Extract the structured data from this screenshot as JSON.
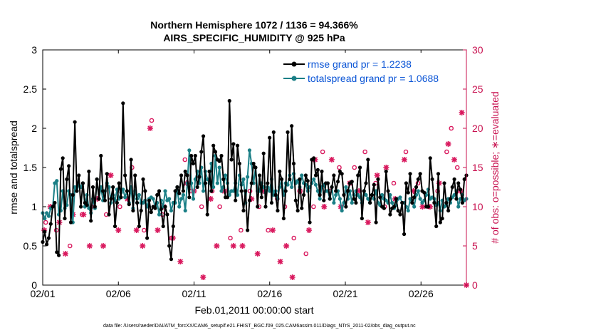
{
  "chart_data": {
    "type": "line",
    "title_line1": "Northern Hemisphere 1072 / 1136 = 94.366%",
    "title_line2": "AIRS_SPECIFIC_HUMIDITY @ 925 hPa",
    "xlabel": "Feb.01,2011 00:00:00 start",
    "ylabel_left": "rmse and totalspread",
    "ylabel_right": "# of obs: o=possible; ∗=evaluated",
    "x_ticks": [
      {
        "day": 0,
        "label": "02/01"
      },
      {
        "day": 5,
        "label": "02/06"
      },
      {
        "day": 10,
        "label": "02/11"
      },
      {
        "day": 15,
        "label": "02/16"
      },
      {
        "day": 20,
        "label": "02/21"
      },
      {
        "day": 25,
        "label": "02/26"
      }
    ],
    "xlim": [
      0,
      28
    ],
    "ylim_left": [
      0,
      3
    ],
    "yticks_left": [
      "0",
      "0.5",
      "1",
      "1.5",
      "2",
      "2.5",
      "3"
    ],
    "ylim_right": [
      0,
      30
    ],
    "yticks_right": [
      "0",
      "5",
      "10",
      "15",
      "20",
      "25",
      "30"
    ],
    "colors": {
      "rmse": "#000000",
      "spread": "#1a7f86",
      "obs": "#d9195e",
      "legend_text": "#0b55d6",
      "right_axis": "#c8104f"
    },
    "series": [
      {
        "name": "rmse",
        "legend": "rmse grand pr = 1.2238",
        "values": [
          0.55,
          0.68,
          0.52,
          0.6,
          0.78,
          1.0,
          1.05,
          0.42,
          0.38,
          1.48,
          1.62,
          0.85,
          1.35,
          1.52,
          0.8,
          1.15,
          2.08,
          1.2,
          1.4,
          1.0,
          1.3,
          1.05,
          1.02,
          1.45,
          0.82,
          1.25,
          1.0,
          1.35,
          1.1,
          1.65,
          1.2,
          1.08,
          1.42,
          0.9,
          1.1,
          1.25,
          0.75,
          1.05,
          1.3,
          1.12,
          2.32,
          1.4,
          1.2,
          1.03,
          1.6,
          0.95,
          1.4,
          1.05,
          0.75,
          0.95,
          1.35,
          1.2,
          0.6,
          1.08,
          0.93,
          1.0,
          0.98,
          1.15,
          1.2,
          0.97,
          0.75,
          1.0,
          0.9,
          0.5,
          0.33,
          0.75,
          1.2,
          1.25,
          1.17,
          1.4,
          1.2,
          1.45,
          1.4,
          1.12,
          1.65,
          1.55,
          1.65,
          1.25,
          1.38,
          1.7,
          1.9,
          1.3,
          0.9,
          1.45,
          1.2,
          1.78,
          1.7,
          1.6,
          1.58,
          1.65,
          1.35,
          1.12,
          1.12,
          2.35,
          1.6,
          1.8,
          1.08,
          1.78,
          1.55,
          1.2,
          0.95,
          1.2,
          0.7,
          1.08,
          1.3,
          1.55,
          1.5,
          1.0,
          1.4,
          1.12,
          1.68,
          1.0,
          1.3,
          1.88,
          1.05,
          1.95,
          1.15,
          0.95,
          1.45,
          1.35,
          0.85,
          1.2,
          1.95,
          1.35,
          2.03,
          1.55,
          1.08,
          0.95,
          1.35,
          0.98,
          1.15,
          1.4,
          1.33,
          0.8,
          1.6,
          1.62,
          1.4,
          1.47,
          1.15,
          1.45,
          1.08,
          1.3,
          1.3,
          1.1,
          1.25,
          1.4,
          1.2,
          1.32,
          1.45,
          1.42,
          1.15,
          1.0,
          1.2,
          1.3,
          1.32,
          1.1,
          1.05,
          1.4,
          1.5,
          0.85,
          1.2,
          1.3,
          1.6,
          1.05,
          1.15,
          1.28,
          0.8,
          1.35,
          1.12,
          1.0,
          0.98,
          1.45,
          1.2,
          0.9,
          0.98,
          1.0,
          1.1,
          0.95,
          0.9,
          1.05,
          0.65,
          1.3,
          1.18,
          1.42,
          1.05,
          1.12,
          1.25,
          1.35,
          1.42,
          1.2,
          1.18,
          1.0,
          1.0,
          1.62,
          1.35,
          1.05,
          0.75,
          1.42,
          0.8,
          0.85,
          1.3,
          1.05,
          0.95,
          1.1,
          1.25,
          1.35,
          1.1,
          1.3,
          1.22,
          1.05,
          1.35,
          1.4
        ]
      },
      {
        "name": "totalspread",
        "legend": "totalspread grand pr = 1.0688",
        "values": [
          0.92,
          0.85,
          0.92,
          0.88,
          0.98,
          1.0,
          1.3,
          1.33,
          0.9,
          0.95,
          1.2,
          0.98,
          1.02,
          1.2,
          1.15,
          0.8,
          1.25,
          1.2,
          1.28,
          1.25,
          1.3,
          1.0,
          1.15,
          0.98,
          0.92,
          1.1,
          0.98,
          1.35,
          1.1,
          1.25,
          1.08,
          1.2,
          1.3,
          1.25,
          1.05,
          1.15,
          1.08,
          1.22,
          1.1,
          1.18,
          1.22,
          1.12,
          1.2,
          1.05,
          1.25,
          0.98,
          1.2,
          1.1,
          1.15,
          1.05,
          1.05,
          1.08,
          1.0,
          1.1,
          1.12,
          1.1,
          1.0,
          1.05,
          0.9,
          1.08,
          1.0,
          1.2,
          1.08,
          1.1,
          0.95,
          1.05,
          1.05,
          1.25,
          1.0,
          1.1,
          1.15,
          0.95,
          1.3,
          1.72,
          1.3,
          1.1,
          1.35,
          1.45,
          1.3,
          1.5,
          1.2,
          1.45,
          1.35,
          1.3,
          1.55,
          1.25,
          1.65,
          1.3,
          1.5,
          1.2,
          1.25,
          1.4,
          1.3,
          1.15,
          1.2,
          1.2,
          1.3,
          1.15,
          1.4,
          1.28,
          1.35,
          1.05,
          1.38,
          1.72,
          1.55,
          1.3,
          1.5,
          1.2,
          1.2,
          1.3,
          1.25,
          1.18,
          1.25,
          1.2,
          1.35,
          1.15,
          1.2,
          1.1,
          1.25,
          1.35,
          1.15,
          1.3,
          1.28,
          1.4,
          1.25,
          1.42,
          1.3,
          1.33,
          1.25,
          1.4,
          1.3,
          1.28,
          1.2,
          1.25,
          1.3,
          1.35,
          1.28,
          1.2,
          1.1,
          1.25,
          1.28,
          1.2,
          1.2,
          1.1,
          1.25,
          1.05,
          1.15,
          1.2,
          1.1,
          0.95,
          1.05,
          1.25,
          1.1,
          1.2,
          1.05,
          1.15,
          1.2,
          1.15,
          1.12,
          1.05,
          1.2,
          1.15,
          1.1,
          1.05,
          1.15,
          1.1,
          1.2,
          1.05,
          1.02,
          1.15,
          1.1,
          1.08,
          1.05,
          1.15,
          1.05,
          0.98,
          1.02,
          1.1,
          1.12,
          1.05,
          1.05,
          1.0,
          0.95,
          1.1,
          1.05,
          1.0,
          1.15,
          1.2,
          1.1,
          1.05,
          1.08,
          1.15,
          1.22,
          1.1,
          1.12,
          1.1,
          1.02,
          1.05,
          0.95,
          1.08,
          1.0,
          1.02,
          1.1,
          1.05,
          1.12,
          1.15,
          1.2,
          1.0,
          1.1,
          1.15,
          1.08,
          1.1
        ]
      }
    ],
    "obs_possible": [
      {
        "day": 0.2,
        "v": 8
      },
      {
        "day": 0.9,
        "v": 7
      },
      {
        "day": 1.8,
        "v": 5
      },
      {
        "day": 2.6,
        "v": 9
      },
      {
        "day": 3.4,
        "v": 10
      },
      {
        "day": 4.2,
        "v": 9
      },
      {
        "day": 5.1,
        "v": 10
      },
      {
        "day": 5.9,
        "v": 15
      },
      {
        "day": 6.7,
        "v": 7
      },
      {
        "day": 7.2,
        "v": 21
      },
      {
        "day": 7.9,
        "v": 9
      },
      {
        "day": 8.5,
        "v": 6
      },
      {
        "day": 9.4,
        "v": 16
      },
      {
        "day": 9.8,
        "v": 12
      },
      {
        "day": 10.5,
        "v": 10
      },
      {
        "day": 11.2,
        "v": 12
      },
      {
        "day": 11.7,
        "v": 10
      },
      {
        "day": 12.4,
        "v": 6
      },
      {
        "day": 13.1,
        "v": 7
      },
      {
        "day": 13.7,
        "v": 12
      },
      {
        "day": 14.3,
        "v": 10
      },
      {
        "day": 14.9,
        "v": 7
      },
      {
        "day": 15.5,
        "v": 11
      },
      {
        "day": 16.0,
        "v": 10
      },
      {
        "day": 16.6,
        "v": 6
      },
      {
        "day": 17.4,
        "v": 4
      },
      {
        "day": 17.9,
        "v": 10
      },
      {
        "day": 18.5,
        "v": 17
      },
      {
        "day": 19.0,
        "v": 12
      },
      {
        "day": 19.6,
        "v": 15
      },
      {
        "day": 20.1,
        "v": 12
      },
      {
        "day": 20.6,
        "v": 15
      },
      {
        "day": 21.3,
        "v": 17
      },
      {
        "day": 22.0,
        "v": 13
      },
      {
        "day": 22.6,
        "v": 10
      },
      {
        "day": 23.2,
        "v": 13
      },
      {
        "day": 24.0,
        "v": 17
      },
      {
        "day": 24.8,
        "v": 13
      },
      {
        "day": 25.5,
        "v": 10
      },
      {
        "day": 26.1,
        "v": 12
      },
      {
        "day": 26.7,
        "v": 17
      },
      {
        "day": 27.0,
        "v": 20
      },
      {
        "day": 27.4,
        "v": 15
      }
    ],
    "obs_evaluated": [
      {
        "day": 0.1,
        "v": 7
      },
      {
        "day": 0.5,
        "v": 10
      },
      {
        "day": 1.1,
        "v": 8
      },
      {
        "day": 1.5,
        "v": 4
      },
      {
        "day": 2.0,
        "v": 9
      },
      {
        "day": 2.7,
        "v": 9
      },
      {
        "day": 3.1,
        "v": 5
      },
      {
        "day": 3.6,
        "v": 11
      },
      {
        "day": 4.0,
        "v": 5
      },
      {
        "day": 4.5,
        "v": 14
      },
      {
        "day": 5.0,
        "v": 7
      },
      {
        "day": 5.6,
        "v": 11
      },
      {
        "day": 6.2,
        "v": 7
      },
      {
        "day": 6.6,
        "v": 5
      },
      {
        "day": 7.1,
        "v": 20
      },
      {
        "day": 7.6,
        "v": 7
      },
      {
        "day": 8.0,
        "v": 10
      },
      {
        "day": 8.6,
        "v": 6
      },
      {
        "day": 9.1,
        "v": 3
      },
      {
        "day": 9.5,
        "v": 13
      },
      {
        "day": 10.0,
        "v": 12
      },
      {
        "day": 10.6,
        "v": 1
      },
      {
        "day": 11.1,
        "v": 11
      },
      {
        "day": 11.5,
        "v": 5
      },
      {
        "day": 12.0,
        "v": 12
      },
      {
        "day": 12.6,
        "v": 5
      },
      {
        "day": 13.2,
        "v": 5
      },
      {
        "day": 13.8,
        "v": 11
      },
      {
        "day": 14.2,
        "v": 4
      },
      {
        "day": 14.6,
        "v": 12
      },
      {
        "day": 15.2,
        "v": 7
      },
      {
        "day": 15.7,
        "v": 3
      },
      {
        "day": 16.1,
        "v": 5
      },
      {
        "day": 16.5,
        "v": 1
      },
      {
        "day": 17.0,
        "v": 12
      },
      {
        "day": 17.6,
        "v": 7
      },
      {
        "day": 18.0,
        "v": 16
      },
      {
        "day": 18.6,
        "v": 10
      },
      {
        "day": 19.1,
        "v": 16
      },
      {
        "day": 19.7,
        "v": 10
      },
      {
        "day": 20.3,
        "v": 13
      },
      {
        "day": 20.9,
        "v": 12
      },
      {
        "day": 21.5,
        "v": 8
      },
      {
        "day": 22.1,
        "v": 14
      },
      {
        "day": 22.7,
        "v": 15
      },
      {
        "day": 23.3,
        "v": 11
      },
      {
        "day": 23.9,
        "v": 16
      },
      {
        "day": 24.5,
        "v": 12
      },
      {
        "day": 25.1,
        "v": 10
      },
      {
        "day": 25.6,
        "v": 10
      },
      {
        "day": 26.2,
        "v": 13
      },
      {
        "day": 26.8,
        "v": 18
      },
      {
        "day": 27.2,
        "v": 16
      },
      {
        "day": 27.6,
        "v": 12
      },
      {
        "day": 27.7,
        "v": 22
      },
      {
        "day": 28.0,
        "v": 0
      }
    ],
    "footer": "data file: /Users/raeder/DAI/ATM_forcXX/CAM6_setup/f.e21.FHIST_BGC.f09_025.CAM6assim.011/Diags_NTrS_2011-02/obs_diag_output.nc"
  }
}
